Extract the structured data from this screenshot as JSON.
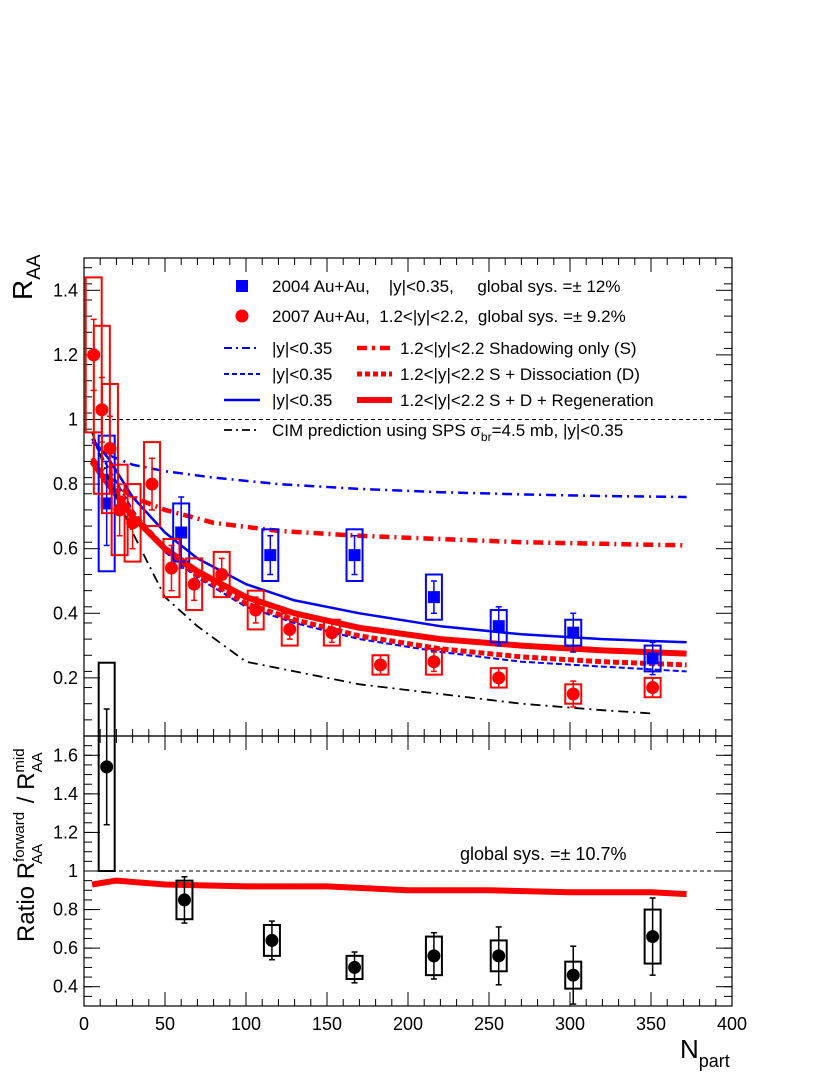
{
  "colors": {
    "blue": "#0000ff",
    "red": "#ff0000",
    "black": "#000000"
  },
  "chart_data": [
    {
      "type": "scatter",
      "panel": "top",
      "ylabel_main": "R",
      "ylabel_sub": "AA",
      "xlim": [
        0,
        400
      ],
      "ylim": [
        0.02,
        1.5
      ],
      "yticks": [
        0.2,
        0.4,
        0.6,
        0.8,
        1,
        1.2,
        1.4
      ],
      "ytick_labels": [
        "0.2",
        "0.4",
        "0.6",
        "0.8",
        "1",
        "1.2",
        "1.4"
      ],
      "reference_line": 1,
      "legend": {
        "entry1": "2004 Au+Au,    |y|<0.35,     global sys. =± 12%",
        "entry2": "2007 Au+Au,  1.2<|y|<2.2,  global sys. =± 9.2%",
        "mid_label": "|y|<0.35",
        "fwd_shadowing": "1.2<|y|<2.2 Shadowing only (S)",
        "fwd_dissociation": "1.2<|y|<2.2 S + Dissociation (D)",
        "fwd_regeneration": "1.2<|y|<2.2 S + D + Regeneration",
        "cim_main": "CIM prediction using SPS σ",
        "cim_sub": "br",
        "cim_rest": "=4.5 mb, |y|<0.35"
      },
      "series": [
        {
          "name": "2004 Au+Au |y|<0.35",
          "marker": "square",
          "color": "#0000ff",
          "x": [
            14,
            60,
            115,
            167,
            216,
            256,
            302,
            351
          ],
          "y": [
            0.74,
            0.65,
            0.58,
            0.58,
            0.45,
            0.36,
            0.34,
            0.26
          ],
          "stat_err": [
            0.13,
            0.11,
            0.06,
            0.06,
            0.05,
            0.06,
            0.06,
            0.05
          ],
          "sys_box": [
            0.21,
            0.09,
            0.08,
            0.08,
            0.07,
            0.05,
            0.04,
            0.04
          ]
        },
        {
          "name": "2007 Au+Au 1.2<|y|<2.2",
          "marker": "circle",
          "color": "#ff0000",
          "x": [
            6,
            11,
            16,
            22,
            30,
            42,
            54,
            68,
            85,
            106,
            127,
            153,
            183,
            216,
            256,
            302,
            351
          ],
          "y": [
            1.2,
            1.03,
            0.91,
            0.72,
            0.68,
            0.8,
            0.54,
            0.49,
            0.52,
            0.41,
            0.35,
            0.34,
            0.24,
            0.25,
            0.2,
            0.15,
            0.17
          ],
          "stat_err": [
            0.11,
            0.1,
            0.1,
            0.08,
            0.08,
            0.08,
            0.07,
            0.05,
            0.05,
            0.04,
            0.03,
            0.03,
            0.03,
            0.03,
            0.03,
            0.04,
            0.03
          ],
          "sys_box": [
            0.24,
            0.26,
            0.2,
            0.14,
            0.12,
            0.13,
            0.09,
            0.08,
            0.07,
            0.06,
            0.05,
            0.04,
            0.03,
            0.04,
            0.03,
            0.03,
            0.03
          ]
        }
      ],
      "curves": [
        {
          "name": "|y|<0.35 Shadowing only",
          "color": "#0000ff",
          "style": "dash-dot",
          "width": 2.5,
          "x": [
            5,
            15,
            30,
            50,
            80,
            120,
            170,
            220,
            270,
            320,
            372
          ],
          "y": [
            0.93,
            0.89,
            0.86,
            0.84,
            0.82,
            0.8,
            0.785,
            0.775,
            0.768,
            0.763,
            0.76
          ]
        },
        {
          "name": "1.2<|y|<2.2 Shadowing only (S)",
          "color": "#ff0000",
          "style": "dash-dot",
          "width": 4.5,
          "x": [
            5,
            15,
            30,
            50,
            80,
            120,
            170,
            220,
            270,
            320,
            372
          ],
          "y": [
            0.88,
            0.82,
            0.76,
            0.72,
            0.68,
            0.655,
            0.64,
            0.63,
            0.62,
            0.615,
            0.61
          ]
        },
        {
          "name": "|y|<0.35 S + D",
          "color": "#0000ff",
          "style": "dashed",
          "width": 2,
          "x": [
            5,
            15,
            30,
            50,
            70,
            100,
            130,
            170,
            220,
            270,
            320,
            372
          ],
          "y": [
            0.94,
            0.85,
            0.72,
            0.59,
            0.51,
            0.42,
            0.37,
            0.32,
            0.28,
            0.25,
            0.235,
            0.22
          ]
        },
        {
          "name": "1.2<|y|<2.2 S + Dissociation (D)",
          "color": "#ff0000",
          "style": "dashed",
          "width": 5,
          "x": [
            5,
            15,
            30,
            50,
            70,
            100,
            130,
            170,
            220,
            270,
            320,
            372
          ],
          "y": [
            0.87,
            0.81,
            0.71,
            0.6,
            0.52,
            0.43,
            0.38,
            0.33,
            0.29,
            0.265,
            0.25,
            0.24
          ]
        },
        {
          "name": "|y|<0.35 S + D + Regeneration",
          "color": "#0000ff",
          "style": "solid",
          "width": 2.5,
          "x": [
            5,
            15,
            30,
            50,
            70,
            100,
            130,
            170,
            220,
            270,
            320,
            372
          ],
          "y": [
            0.94,
            0.88,
            0.76,
            0.65,
            0.57,
            0.49,
            0.44,
            0.4,
            0.36,
            0.335,
            0.32,
            0.31
          ]
        },
        {
          "name": "1.2<|y|<2.2 S + D + Regeneration",
          "color": "#ff0000",
          "style": "solid",
          "width": 6,
          "x": [
            5,
            15,
            30,
            50,
            70,
            100,
            130,
            170,
            220,
            270,
            320,
            372
          ],
          "y": [
            0.87,
            0.8,
            0.7,
            0.6,
            0.53,
            0.45,
            0.4,
            0.355,
            0.32,
            0.3,
            0.285,
            0.275
          ]
        },
        {
          "name": "CIM prediction",
          "color": "#000000",
          "style": "dash-dot",
          "width": 1.8,
          "x": [
            5,
            15,
            30,
            50,
            70,
            100,
            130,
            170,
            220,
            270,
            320,
            350
          ],
          "y": [
            0.96,
            0.82,
            0.65,
            0.45,
            0.36,
            0.25,
            0.22,
            0.18,
            0.15,
            0.12,
            0.1,
            0.09
          ]
        }
      ]
    },
    {
      "type": "scatter",
      "panel": "bottom",
      "ylabel_prefix": "Ratio R",
      "ylabel_sup1": "forward",
      "ylabel_sub1": "AA",
      "ylabel_mid": " / R",
      "ylabel_sup2": "mid",
      "ylabel_sub2": "AA",
      "xlabel_main": "N",
      "xlabel_sub": "part",
      "xlim": [
        0,
        400
      ],
      "ylim": [
        0.3,
        1.7
      ],
      "xticks": [
        0,
        50,
        100,
        150,
        200,
        250,
        300,
        350,
        400
      ],
      "xtick_labels": [
        "0",
        "50",
        "100",
        "150",
        "200",
        "250",
        "300",
        "350",
        "400"
      ],
      "yticks": [
        0.4,
        0.6,
        0.8,
        1,
        1.2,
        1.4,
        1.6
      ],
      "ytick_labels": [
        "0.4",
        "0.6",
        "0.8",
        "1",
        "1.2",
        "1.4",
        "1.6"
      ],
      "reference_line": 1,
      "annotation": "global sys. =± 10.7%",
      "series": [
        {
          "name": "Ratio forward/mid",
          "marker": "circle",
          "color": "#000000",
          "x": [
            14,
            62,
            116,
            167,
            216,
            256,
            302,
            351
          ],
          "y": [
            1.54,
            0.85,
            0.64,
            0.5,
            0.56,
            0.56,
            0.46,
            0.66
          ],
          "stat_err": [
            0.3,
            0.12,
            0.1,
            0.08,
            0.12,
            0.15,
            0.15,
            0.2
          ],
          "sys_box": [
            0.54,
            0.1,
            0.08,
            0.06,
            0.1,
            0.08,
            0.07,
            0.14
          ]
        }
      ],
      "curves": [
        {
          "name": "Ratio prediction",
          "color": "#ff0000",
          "style": "solid",
          "width": 6,
          "x": [
            5,
            20,
            50,
            100,
            150,
            200,
            250,
            300,
            350,
            372
          ],
          "y": [
            0.93,
            0.95,
            0.93,
            0.92,
            0.92,
            0.9,
            0.9,
            0.89,
            0.89,
            0.88
          ]
        }
      ]
    }
  ]
}
